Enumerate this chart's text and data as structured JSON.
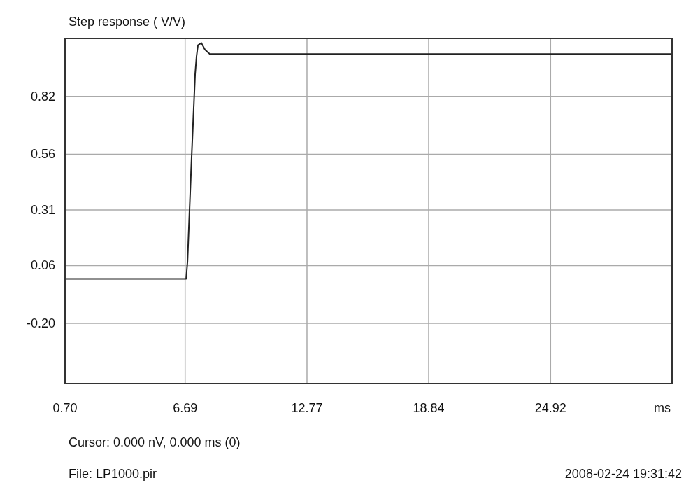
{
  "chart_data": {
    "type": "line",
    "title": "Step response ( V/V)",
    "xlabel": "ms",
    "x": [
      0.7,
      6.74,
      6.81,
      6.91,
      7.02,
      7.12,
      7.19,
      7.26,
      7.33,
      7.5,
      7.68,
      7.92,
      30.98
    ],
    "series": [
      {
        "color": "#222222",
        "values": [
          0.0,
          0.0,
          0.08,
          0.31,
          0.56,
          0.77,
          0.92,
          1.0,
          1.05,
          1.06,
          1.03,
          1.01,
          1.01
        ]
      }
    ],
    "xlim": [
      0.7,
      30.98
    ],
    "xticks": [
      {
        "value": 0.7,
        "label": "0.70"
      },
      6.69,
      12.77,
      18.84,
      24.92
    ],
    "ylim": [
      -0.47,
      1.08
    ],
    "yticks": [
      {
        "value": -0.2,
        "label": "-0.20"
      },
      {
        "value": 0.06,
        "label": "0.06"
      },
      0.31,
      0.56,
      0.82
    ],
    "grid": true,
    "marker": "none",
    "line_style": "solid",
    "annotations": [
      "Cursor:  0.000 nV,   0.000 ms  (0)",
      "File: LP1000.pir",
      "2008-02-24  19:31:42"
    ]
  }
}
